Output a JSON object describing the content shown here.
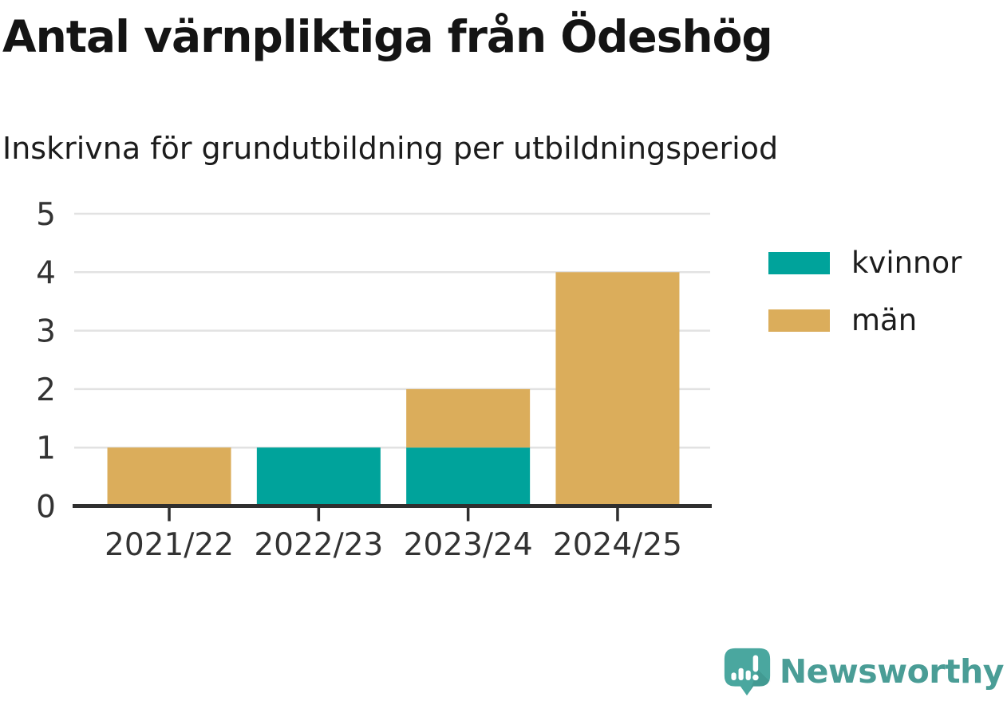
{
  "header": {
    "title": "Antal värnpliktiga från Ödeshög",
    "subtitle": "Inskrivna för grundutbildning per utbildningsperiod"
  },
  "chart_data": {
    "type": "bar",
    "stacked": true,
    "title": "Antal värnpliktiga från Ödeshög",
    "subtitle": "Inskrivna för grundutbildning per utbildningsperiod",
    "categories": [
      "2021/22",
      "2022/23",
      "2023/24",
      "2024/25"
    ],
    "series": [
      {
        "name": "kvinnor",
        "color": "#00a39b",
        "values": [
          0,
          1,
          1,
          0
        ]
      },
      {
        "name": "män",
        "color": "#dbad5b",
        "values": [
          1,
          0,
          1,
          4
        ]
      }
    ],
    "totals": [
      1,
      1,
      2,
      4
    ],
    "xlabel": "",
    "ylabel": "",
    "ylim": [
      0,
      5
    ],
    "yticks": [
      0,
      1,
      2,
      3,
      4,
      5
    ],
    "grid": "horizontal",
    "legend_position": "right"
  },
  "branding": {
    "wordmark": "Newsworthy"
  },
  "colors": {
    "kvinnor": "#00a39b",
    "man": "#dbad5b",
    "axis": "#2f2f2f",
    "grid": "#e2e2e2",
    "tick_text": "#333333",
    "title_text": "#141414",
    "brand_teal": "#4a9d96"
  }
}
